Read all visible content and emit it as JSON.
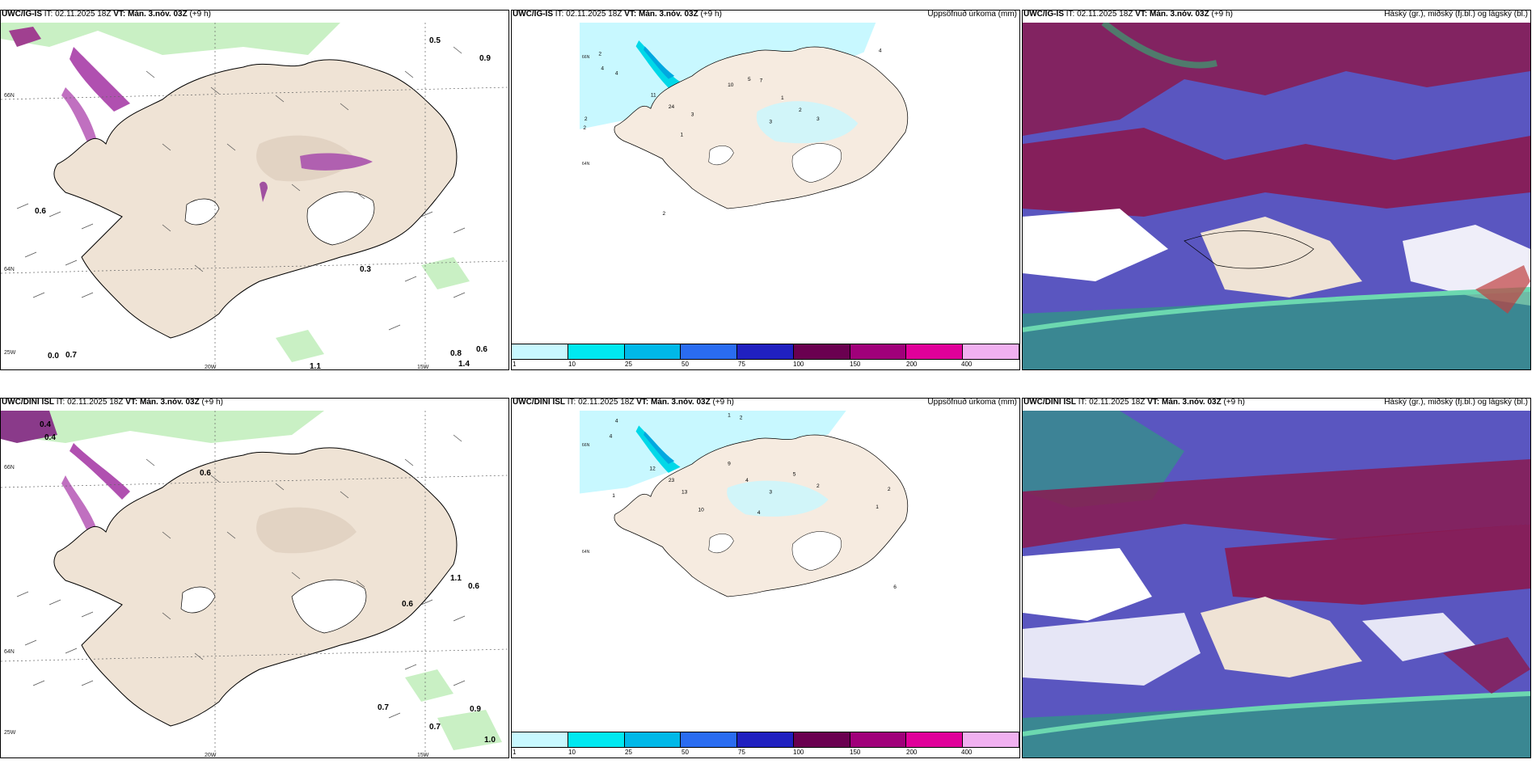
{
  "panels": {
    "p1": {
      "model": "UWC/IG-IS",
      "it": "IT: 02.11.2025 18Z",
      "vt": "VT: Mán. 3.nóv. 03Z",
      "lead": "(+9 h)",
      "title_right": ""
    },
    "p2": {
      "model": "UWC/IG-IS",
      "it": "IT: 02.11.2025 18Z",
      "vt": "VT: Mán. 3.nóv. 03Z",
      "lead": "(+9 h)",
      "title_right": "Uppsöfnuð úrkoma (mm)"
    },
    "p3": {
      "model": "UWC/IG-IS",
      "it": "IT: 02.11.2025 18Z",
      "vt": "VT: Mán. 3.nóv. 03Z",
      "lead": "(+9 h)",
      "title_right": "Háský (gr.), miðský (fj.bl.) og lágský (bl.)"
    },
    "p4": {
      "model": "UWC/DINI ISL",
      "it": "IT: 02.11.2025 18Z",
      "vt": "VT: Mán. 3.nóv. 03Z",
      "lead": "(+9 h)",
      "title_right": ""
    },
    "p5": {
      "model": "UWC/DINI ISL",
      "it": "IT: 02.11.2025 18Z",
      "vt": "VT: Mán. 3.nóv. 03Z",
      "lead": "(+9 h)",
      "title_right": "Uppsöfnuð úrkoma (mm)"
    },
    "p6": {
      "model": "UWC/DINI ISL",
      "it": "IT: 02.11.2025 18Z",
      "vt": "VT: Mán. 3.nóv. 03Z",
      "lead": "(+9 h)",
      "title_right": "Háský (gr.), miðský (fj.bl.) og lágský (bl.)"
    }
  },
  "axes": {
    "lat66": "66N",
    "lat64": "64N",
    "lon25": "25W",
    "lon20": "20W",
    "lon15": "15W"
  },
  "colorbar": {
    "labels": [
      "1",
      "10",
      "25",
      "50",
      "75",
      "100",
      "150",
      "200",
      "400"
    ],
    "colors": [
      "#c8f8ff",
      "#00e8f0",
      "#00b8e8",
      "#2a6cf0",
      "#2020c0",
      "#6a0050",
      "#a0007a",
      "#e0009a",
      "#f0b0f0"
    ]
  },
  "top_precip_labels": [
    "0.5",
    "0.9",
    "0.6",
    "0.3",
    "0.8",
    "0.6",
    "1.4",
    "1.1",
    "0.0",
    "0.7"
  ],
  "bottom_precip_labels": [
    "0.4",
    "0.4",
    "0.6",
    "1.1",
    "0.6",
    "0.7",
    "0.6",
    "0.9",
    "0.7",
    "1.0"
  ],
  "top_accum_values": [
    "2",
    "4",
    "4",
    "2",
    "2",
    "10",
    "11",
    "24",
    "3",
    "5",
    "7",
    "3",
    "1",
    "2",
    "3",
    "4",
    "1",
    "2"
  ],
  "bottom_accum_values": [
    "1",
    "2",
    "4",
    "4",
    "1",
    "9",
    "12",
    "23",
    "13",
    "10",
    "4",
    "3",
    "5",
    "2",
    "4",
    "1",
    "2",
    "6"
  ]
}
